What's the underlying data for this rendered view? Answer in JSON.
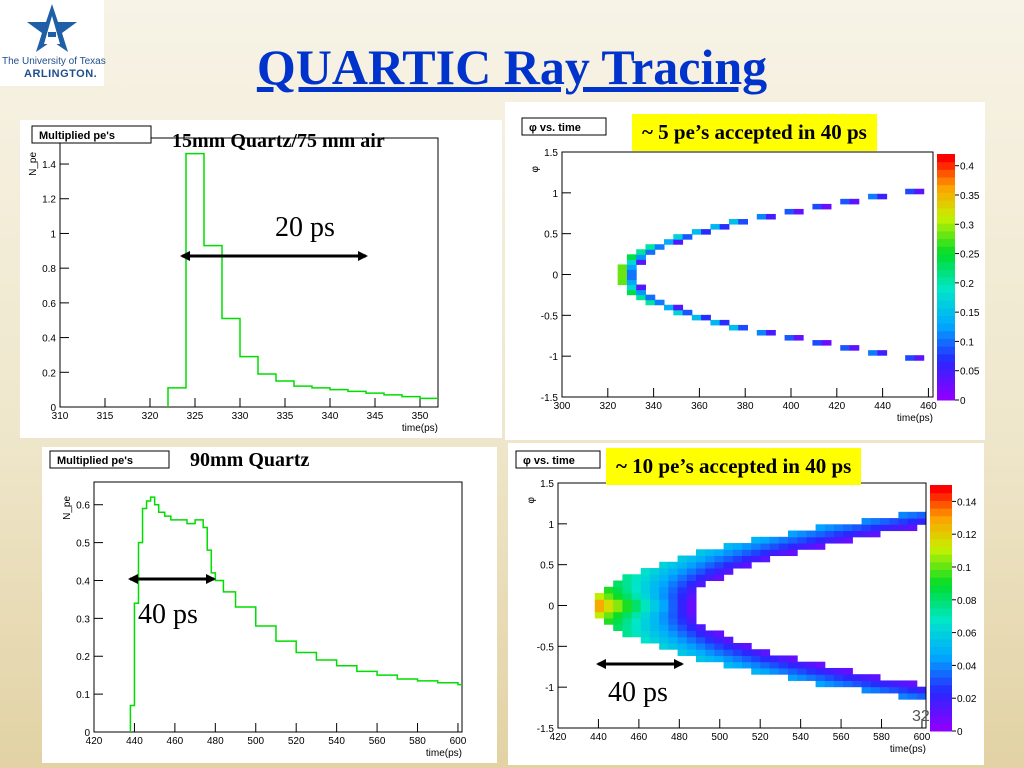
{
  "logo": {
    "line1": "The University of Texas",
    "line2": "ARLINGTON."
  },
  "title": "QUARTIC Ray Tracing",
  "page_number": "32",
  "colors": {
    "title": "#0033cc",
    "highlight": "#ffff00",
    "hist_line": "#00dd00"
  },
  "panels": {
    "tl": {
      "label": "15mm Quartz/75 mm air",
      "arrow_label": "20 ps"
    },
    "tr": {
      "highlight": "~ 5 pe’s accepted in 40 ps"
    },
    "bl": {
      "label": "90mm Quartz",
      "arrow_label": "40 ps"
    },
    "br": {
      "highlight": "~ 10 pe’s accepted in 40 ps",
      "arrow_label": "40 ps"
    }
  },
  "chart_data": [
    {
      "id": "tl",
      "type": "histogram",
      "title": "Multiplied pe's",
      "xlabel": "time(ps)",
      "ylabel": "N_pe",
      "xlim": [
        310,
        352
      ],
      "ylim": [
        0,
        1.55
      ],
      "xticks": [
        310,
        315,
        320,
        325,
        330,
        335,
        340,
        345,
        350
      ],
      "yticks": [
        0,
        0.2,
        0.4,
        0.6,
        0.8,
        1,
        1.2,
        1.4
      ],
      "bin_edges": [
        322,
        324,
        326,
        328,
        330,
        332,
        334,
        336,
        338,
        340,
        342,
        344,
        346,
        348,
        350,
        352
      ],
      "values": [
        0.11,
        1.46,
        0.93,
        0.51,
        0.29,
        0.19,
        0.15,
        0.12,
        0.11,
        0.1,
        0.09,
        0.08,
        0.07,
        0.06,
        0.05
      ]
    },
    {
      "id": "tr",
      "type": "heatmap",
      "title": "φ vs. time",
      "xlabel": "time(ps)",
      "ylabel": "φ",
      "xlim": [
        300,
        462
      ],
      "ylim": [
        -1.5,
        1.5
      ],
      "xticks": [
        300,
        320,
        340,
        360,
        380,
        400,
        420,
        440,
        460
      ],
      "yticks": [
        -1.5,
        -1,
        -0.5,
        0,
        0.5,
        1,
        1.5
      ],
      "zlim": [
        0,
        0.42
      ],
      "zticks": [
        0,
        0.05,
        0.1,
        0.15,
        0.2,
        0.25,
        0.3,
        0.35,
        0.4
      ],
      "curve": {
        "vertex_time": 324,
        "time_at_phi_1": 444,
        "band_width_time": 8,
        "phi_range": [
          -1.05,
          1.05
        ]
      }
    },
    {
      "id": "bl",
      "type": "histogram",
      "title": "Multiplied pe's",
      "xlabel": "time(ps)",
      "ylabel": "N_pe",
      "xlim": [
        420,
        602
      ],
      "ylim": [
        0,
        0.66
      ],
      "xticks": [
        420,
        440,
        460,
        480,
        500,
        520,
        540,
        560,
        580,
        600
      ],
      "yticks": [
        0,
        0.1,
        0.2,
        0.3,
        0.4,
        0.5,
        0.6
      ],
      "x": [
        438,
        440,
        442,
        444,
        446,
        448,
        450,
        452,
        455,
        458,
        462,
        466,
        470,
        474,
        476,
        478,
        480,
        484,
        490,
        500,
        510,
        520,
        530,
        540,
        550,
        560,
        570,
        580,
        590,
        600
      ],
      "y": [
        0.07,
        0.34,
        0.5,
        0.59,
        0.61,
        0.62,
        0.6,
        0.58,
        0.57,
        0.56,
        0.56,
        0.55,
        0.56,
        0.54,
        0.48,
        0.42,
        0.4,
        0.37,
        0.33,
        0.28,
        0.24,
        0.21,
        0.19,
        0.175,
        0.16,
        0.15,
        0.14,
        0.135,
        0.13,
        0.125
      ]
    },
    {
      "id": "br",
      "type": "heatmap",
      "title": "φ vs. time",
      "xlabel": "time(ps)",
      "ylabel": "φ",
      "xlim": [
        420,
        602
      ],
      "ylim": [
        -1.5,
        1.5
      ],
      "xticks": [
        420,
        440,
        460,
        480,
        500,
        520,
        540,
        560,
        580,
        600
      ],
      "yticks": [
        -1.5,
        -1,
        -0.5,
        0,
        0.5,
        1,
        1.5
      ],
      "zlim": [
        0,
        0.15
      ],
      "zticks": [
        0,
        0.02,
        0.04,
        0.06,
        0.08,
        0.1,
        0.12,
        0.14
      ],
      "curve": {
        "vertex_time": 438,
        "time_at_phi_1": 560,
        "band_width_time": 48,
        "phi_range": [
          -1.3,
          1.3
        ]
      }
    }
  ]
}
